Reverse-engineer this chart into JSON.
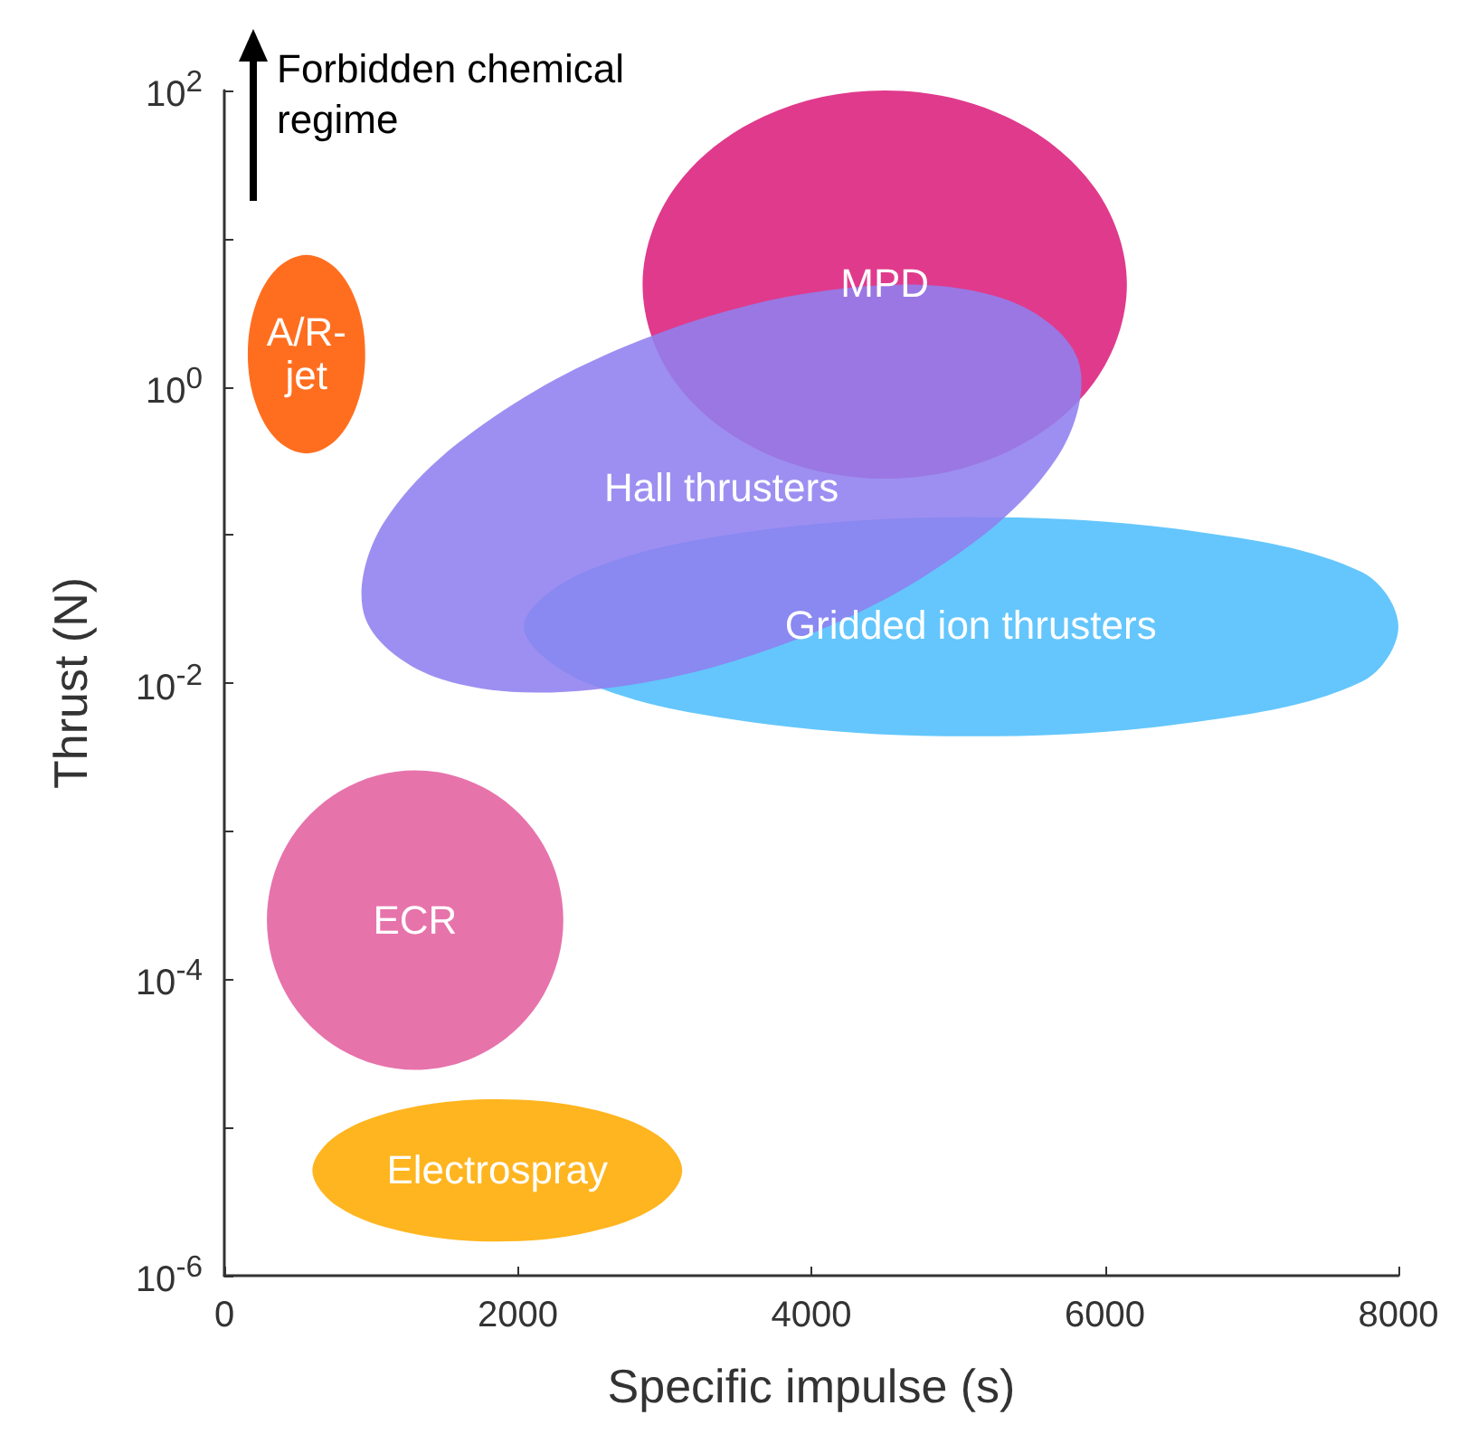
{
  "chart_data": {
    "type": "area",
    "xlabel": "Specific impulse (s)",
    "ylabel": "Thrust (N)",
    "log": "y",
    "grid": false,
    "legend": false,
    "xlim": [
      0,
      8000
    ],
    "xticks": [
      0,
      2000,
      4000,
      6000,
      8000
    ],
    "ylim": [
      1e-06,
      100
    ],
    "yticks": [
      {
        "value": 1e-06,
        "label": "10$^{-6}$"
      },
      {
        "value": 1e-05,
        "label": null
      },
      {
        "value": 0.0001,
        "label": "10$^{-4}$"
      },
      {
        "value": 0.001,
        "label": null
      },
      {
        "value": 0.01,
        "label": "10$^{-2}$"
      },
      {
        "value": 0.1,
        "label": null
      },
      {
        "value": 1,
        "label": "10$^{0}$"
      },
      {
        "value": 10,
        "label": null
      },
      {
        "value": 100,
        "label": "10$^{2}$"
      }
    ],
    "annotations": [
      "Forbidden chemical regime"
    ],
    "series": [
      {
        "name": "MPD",
        "color": "#dc1f7c",
        "x": [
          6150,
          5929,
          5325,
          4500,
          3675,
          3071,
          2850,
          3071,
          3675,
          4500,
          5325,
          5929
        ],
        "values": [
          4.9,
          22.1,
          66.7,
          100,
          66.7,
          22.1,
          4.9,
          1.08,
          0.36,
          0.24,
          0.36,
          1.08
        ]
      },
      {
        "name": "A/R-jet",
        "color": "#ff5a00",
        "x": [
          960,
          906,
          760,
          560,
          360,
          214,
          160,
          214,
          360,
          560,
          760,
          906
        ],
        "values": [
          1.66,
          3.59,
          6.31,
          7.76,
          6.31,
          3.59,
          1.66,
          0.767,
          0.436,
          0.355,
          0.436,
          0.767
        ]
      },
      {
        "name": "Gridded ion thrusters",
        "color": "#4fbefc",
        "x": [
          8000,
          7750,
          6630,
          5100,
          3570,
          2450,
          2040,
          2450,
          3570,
          5100,
          6630,
          7750
        ],
        "values": [
          0.024,
          0.0562,
          0.105,
          0.132,
          0.105,
          0.0562,
          0.024,
          0.0102,
          0.00548,
          0.00437,
          0.00548,
          0.0102
        ]
      },
      {
        "name": "Hall thrusters",
        "color": "#8f7fef",
        "x": [
          5815,
          5295,
          4263,
          2997,
          1835,
          1089,
          960,
          1480,
          2512,
          3778,
          4939,
          5685
        ],
        "values": [
          1.54,
          3.98,
          4.67,
          2.37,
          0.625,
          0.122,
          0.0275,
          0.0106,
          0.00904,
          0.0178,
          0.0676,
          0.346
        ]
      },
      {
        "name": "ECR",
        "color": "#e4609f",
        "x": [
          2310,
          2175,
          1805,
          1300,
          795,
          425,
          290,
          425,
          795,
          1300,
          1805,
          2175
        ],
        "values": [
          0.000251,
          0.000804,
          0.00188,
          0.00257,
          0.00188,
          0.000804,
          0.000251,
          7.85e-05,
          3.35e-05,
          2.45e-05,
          3.35e-05,
          7.85e-05
        ]
      },
      {
        "name": "Electrospray",
        "color": "#ffab00",
        "x": [
          3120,
          2951,
          2490,
          1860,
          1230,
          769,
          600,
          769,
          1230,
          1860,
          2490,
          2951
        ],
        "values": [
          5.13e-06,
          8.91e-06,
          1.34e-05,
          1.55e-05,
          1.34e-05,
          8.91e-06,
          5.13e-06,
          2.95e-06,
          1.97e-06,
          1.7e-06,
          1.97e-06,
          2.95e-06
        ]
      }
    ]
  }
}
